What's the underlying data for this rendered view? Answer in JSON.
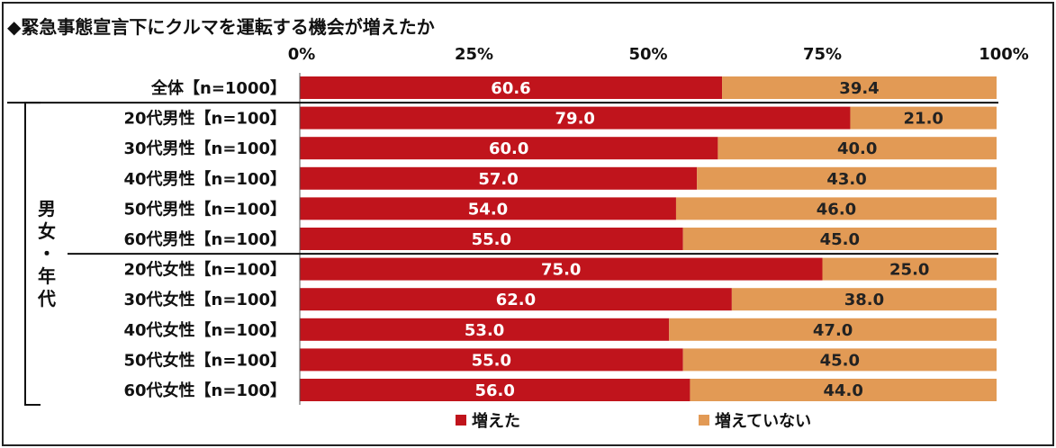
{
  "title": "◆緊急事態宣言下にクルマを運転する機会が増えたか",
  "group_label": "男女・年代",
  "colors": {
    "increased": "#c0141c",
    "not_increased": "#e29a55",
    "label_dark": "#222222",
    "label_light": "#ffffff"
  },
  "chart_data": {
    "type": "bar",
    "orientation": "horizontal",
    "stacked": true,
    "xlim": [
      0,
      100
    ],
    "x_ticks": [
      "0%",
      "25%",
      "50%",
      "75%",
      "100%"
    ],
    "categories": [
      "全体【n=1000】",
      "20代男性【n=100】",
      "30代男性【n=100】",
      "40代男性【n=100】",
      "50代男性【n=100】",
      "60代男性【n=100】",
      "20代女性【n=100】",
      "30代女性【n=100】",
      "40代女性【n=100】",
      "50代女性【n=100】",
      "60代女性【n=100】"
    ],
    "series": [
      {
        "name": "増えた",
        "values": [
          60.6,
          79.0,
          60.0,
          57.0,
          54.0,
          55.0,
          75.0,
          62.0,
          53.0,
          55.0,
          56.0
        ]
      },
      {
        "name": "増えていない",
        "values": [
          39.4,
          21.0,
          40.0,
          43.0,
          46.0,
          45.0,
          25.0,
          38.0,
          47.0,
          45.0,
          44.0
        ]
      }
    ],
    "data_labels": [
      [
        "60.6",
        "79.0",
        "60.0",
        "57.0",
        "54.0",
        "55.0",
        "75.0",
        "62.0",
        "53.0",
        "55.0",
        "56.0"
      ],
      [
        "39.4",
        "21.0",
        "40.0",
        "43.0",
        "46.0",
        "45.0",
        "25.0",
        "38.0",
        "47.0",
        "45.0",
        "44.0"
      ]
    ],
    "grid": false,
    "legend_position": "bottom"
  }
}
